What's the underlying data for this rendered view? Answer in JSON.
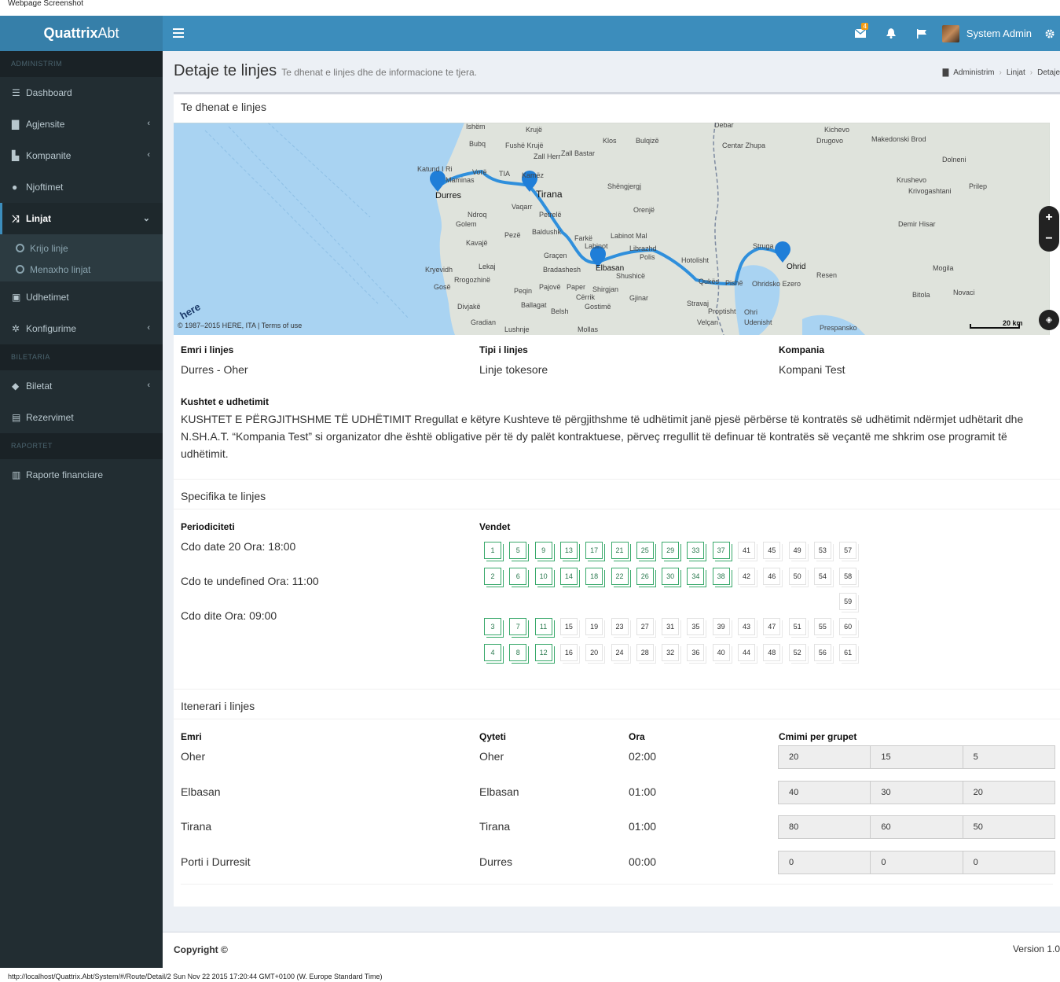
{
  "window_title": "Webpage Screenshot",
  "brand": {
    "bold": "Quattrix",
    "light": "Abt"
  },
  "topbar": {
    "mail_badge": "4",
    "user_name": "System Admin"
  },
  "sidebar": {
    "headers": [
      "ADMINISTRIM",
      "BILETARIA",
      "RAPORTET"
    ],
    "items": [
      {
        "label": "Dashboard",
        "icon": "dashboard-icon"
      },
      {
        "label": "Agjensite",
        "icon": "building-icon"
      },
      {
        "label": "Kompanite",
        "icon": "chart-icon"
      },
      {
        "label": "Njoftimet",
        "icon": "bell-icon"
      },
      {
        "label": "Linjat",
        "icon": "random-icon"
      },
      {
        "label": "Udhetimet",
        "icon": "bus-icon"
      },
      {
        "label": "Konfigurime",
        "icon": "cogs-icon"
      },
      {
        "label": "Biletat",
        "icon": "ticket-icon"
      },
      {
        "label": "Rezervimet",
        "icon": "calendar-check-icon"
      },
      {
        "label": "Raporte financiare",
        "icon": "bar-chart-icon"
      }
    ],
    "submenu": [
      "Krijo linje",
      "Menaxho linjat"
    ]
  },
  "page": {
    "title": "Detaje te linjes",
    "subtitle": "Te dhenat e linjes dhe de informacione te tjera.",
    "breadcrumb": [
      "Administrim",
      "Linjat",
      "Detaje"
    ]
  },
  "section1": {
    "title": "Te dhenat e linjes",
    "map_attribution": "© 1987–2015 HERE, ITA | Terms of use",
    "map_logo": "here",
    "map_scale": "20 km",
    "map_labels": [
      "Ishëm",
      "Krujë",
      "Debar",
      "Kichevo",
      "Drugovo",
      "Makedonski Brod",
      "Bubq",
      "Fushë Krujë",
      "Klos",
      "Bulqizë",
      "Centar Zhupa",
      "Zall Herr",
      "Zall Bastar",
      "Katund I Ri",
      "Maminas",
      "Vorë",
      "TIA",
      "Kamëz",
      "Durres",
      "Tirana",
      "Shëngjergj",
      "Krushevo",
      "Krivogashtani",
      "Prilep",
      "Dolneni",
      "Vaqarr",
      "Petrelë",
      "Orenjë",
      "Ndroq",
      "Golem",
      "Baldushk",
      "Demir Hisar",
      "Kavajë",
      "Pezë",
      "Farkë",
      "Labinot Mal",
      "Struga",
      "Ohrid",
      "Lekaj",
      "Graçen",
      "Labinot",
      "Librazhd",
      "Polis",
      "Hotolisht",
      "Kryevidh",
      "Bradashesh",
      "Elbasan",
      "Shushicë",
      "Resen",
      "Mogila",
      "Rrogozhinë",
      "Gosë",
      "Pajovë",
      "Paper",
      "Qukës",
      "Pishë",
      "Ohridsko Ezero",
      "Bitola",
      "Novaci",
      "Peqin",
      "Shirgjan",
      "Cërrik",
      "Gjinar",
      "Divjakë",
      "Ballagat",
      "Gostimë",
      "Stravaj",
      "Proptisht",
      "Belsh",
      "Velçan",
      "Ohri",
      "Gradian",
      "Lushnje",
      "Mollas",
      "Udenisht",
      "Prespansko"
    ]
  },
  "line_info": {
    "name_label": "Emri i linjes",
    "name": "Durres - Oher",
    "type_label": "Tipi i linjes",
    "type": "Linje tokesore",
    "company_label": "Kompania",
    "company": "Kompani Test",
    "terms_label": "Kushtet e udhetimit",
    "terms": "KUSHTET E PËRGJITHSHME TË UDHËTIMIT Rregullat e këtyre Kushteve të përgjithshme të udhëtimit janë pjesë përbërse të kontratës së udhëtimit ndërmjet udhëtarit dhe N.SH.A.T. “Kompania Test” si organizator dhe është obligative për të dy palët kontraktuese, përveç rregullit të definuar të kontratës së veçantë me shkrim ose programit të udhëtimit."
  },
  "section2": {
    "title": "Specifika te linjes",
    "periodicity_label": "Periodiciteti",
    "periodicity": [
      "Cdo date 20 Ora: 18:00",
      "Cdo te undefined Ora: 11:00",
      "Cdo dite Ora: 09:00"
    ],
    "seats_label": "Vendet",
    "seat_rows": [
      [
        "1",
        "5",
        "9",
        "13",
        "17",
        "21",
        "25",
        "29",
        "33",
        "37",
        "41",
        "45",
        "49",
        "53",
        "57"
      ],
      [
        "2",
        "6",
        "10",
        "14",
        "18",
        "22",
        "26",
        "30",
        "34",
        "38",
        "42",
        "46",
        "50",
        "54",
        "58"
      ],
      [
        "59"
      ],
      [
        "3",
        "7",
        "11",
        "15",
        "19",
        "23",
        "27",
        "31",
        "35",
        "39",
        "43",
        "47",
        "51",
        "55",
        "60"
      ],
      [
        "4",
        "8",
        "12",
        "16",
        "20",
        "24",
        "28",
        "32",
        "36",
        "40",
        "44",
        "48",
        "52",
        "56",
        "61"
      ]
    ],
    "taken_seats": [
      "1",
      "5",
      "9",
      "13",
      "17",
      "21",
      "25",
      "29",
      "33",
      "37",
      "2",
      "6",
      "10",
      "14",
      "18",
      "22",
      "26",
      "30",
      "34",
      "38",
      "3",
      "7",
      "11",
      "4",
      "8",
      "12"
    ]
  },
  "section3": {
    "title": "Itenerari i linjes",
    "headers": [
      "Emri",
      "Qyteti",
      "Ora",
      "Cmimi per grupet"
    ],
    "rows": [
      {
        "name": "Oher",
        "city": "Oher",
        "time": "02:00",
        "prices": [
          "20",
          "15",
          "5"
        ]
      },
      {
        "name": "Elbasan",
        "city": "Elbasan",
        "time": "01:00",
        "prices": [
          "40",
          "30",
          "20"
        ]
      },
      {
        "name": "Tirana",
        "city": "Tirana",
        "time": "01:00",
        "prices": [
          "80",
          "60",
          "50"
        ]
      },
      {
        "name": "Porti i Durresit",
        "city": "Durres",
        "time": "00:00",
        "prices": [
          "0",
          "0",
          "0"
        ]
      }
    ]
  },
  "footer": {
    "copyright": "Copyright ©",
    "version": "Version 1.0"
  },
  "statusbar": "http://localhost/Quattrix.Abt/System/#/Route/Detail/2 Sun Nov 22 2015 17:20:44 GMT+0100 (W. Europe Standard Time)",
  "colors": {
    "topbar": "#3c8dbc",
    "sidebar": "#222d32",
    "seat_taken": "#39a96b",
    "route": "#2f8fdc"
  }
}
